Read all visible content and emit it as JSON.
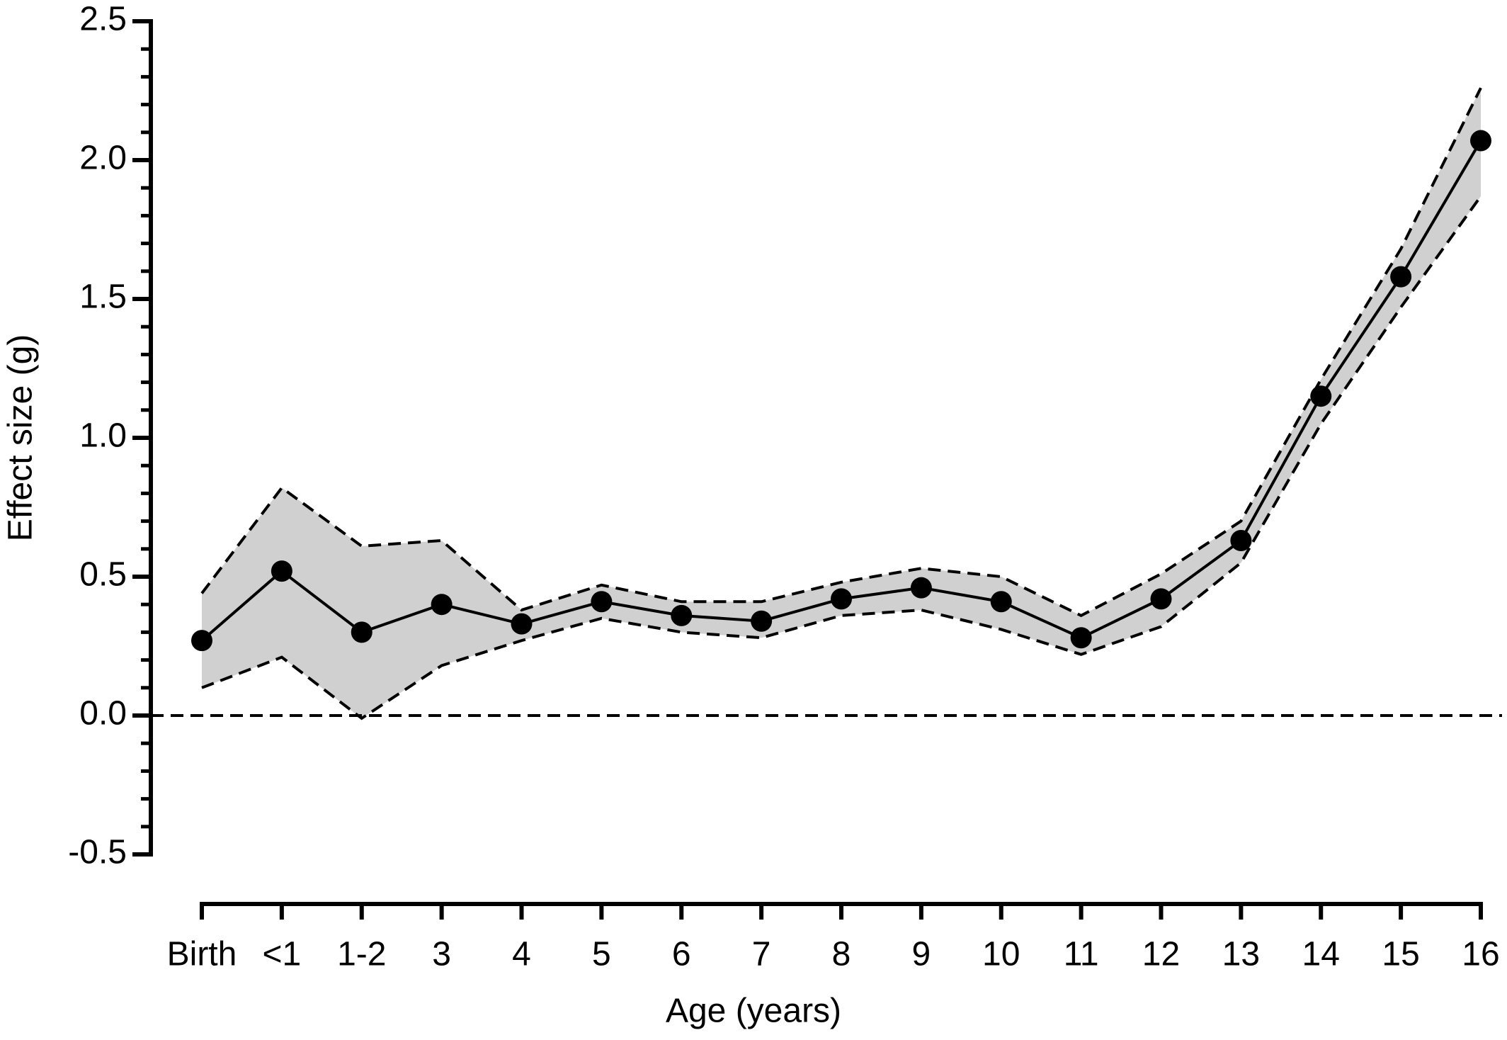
{
  "chart_data": {
    "type": "line",
    "xlabel": "Age (years)",
    "ylabel": "Effect size (g)",
    "categories": [
      "Birth",
      "<1",
      "1-2",
      "3",
      "4",
      "5",
      "6",
      "7",
      "8",
      "9",
      "10",
      "11",
      "12",
      "13",
      "14",
      "15",
      "16"
    ],
    "values": [
      0.27,
      0.52,
      0.3,
      0.4,
      0.33,
      0.41,
      0.36,
      0.34,
      0.42,
      0.46,
      0.41,
      0.28,
      0.42,
      0.63,
      1.15,
      1.58,
      2.07
    ],
    "upper": [
      0.44,
      0.82,
      0.61,
      0.63,
      0.38,
      0.47,
      0.41,
      0.41,
      0.48,
      0.53,
      0.5,
      0.36,
      0.51,
      0.7,
      1.21,
      1.68,
      2.26
    ],
    "lower": [
      0.1,
      0.21,
      -0.01,
      0.18,
      0.27,
      0.35,
      0.3,
      0.28,
      0.36,
      0.38,
      0.31,
      0.22,
      0.32,
      0.55,
      1.05,
      1.47,
      1.87
    ],
    "color": "#000000",
    "band_color": "#d0d0d0",
    "ylim": [
      -0.5,
      2.5
    ],
    "yticks": [
      -0.5,
      {
        "value": 0,
        "label": "0.0"
      },
      0.5,
      {
        "value": 1,
        "label": "1.0"
      },
      1.5,
      {
        "value": 2,
        "label": "2.0"
      },
      2.5
    ],
    "yminorticks": [
      -0.4,
      -0.3,
      -0.2,
      -0.1,
      0.1,
      0.2,
      0.3,
      0.4,
      0.6,
      0.7,
      0.8,
      0.9,
      1.1,
      1.2,
      1.3,
      1.4,
      1.6,
      1.7,
      1.8,
      1.9,
      2.1,
      2.2,
      2.3,
      2.4
    ],
    "hline": 0
  }
}
